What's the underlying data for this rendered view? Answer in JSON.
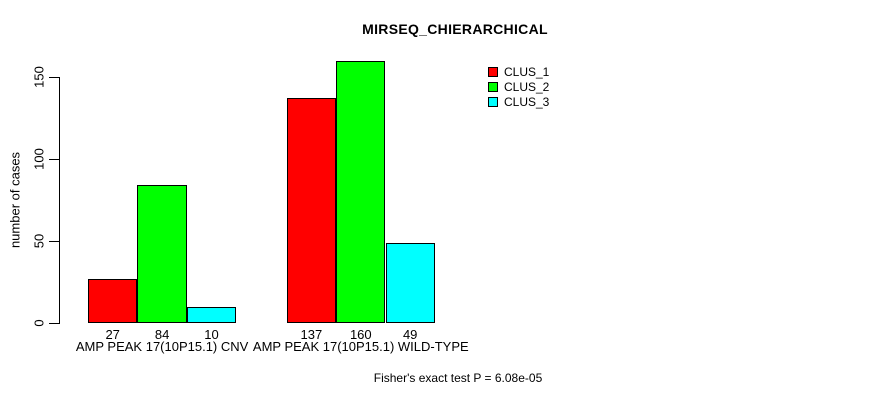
{
  "title": "MIRSEQ_CHIERARCHICAL",
  "footer": "Fisher's exact test P = 6.08e-05",
  "colors": {
    "clus_1": "#ff0000",
    "clus_2": "#00ff00",
    "clus_3": "#00ffff",
    "axis": "#000000",
    "background": "#ffffff"
  },
  "legend": {
    "position": "top-right-of-plot",
    "items": [
      {
        "label": "CLUS_1",
        "color": "#ff0000"
      },
      {
        "label": "CLUS_2",
        "color": "#00ff00"
      },
      {
        "label": "CLUS_3",
        "color": "#00ffff"
      }
    ]
  },
  "chart_data": {
    "type": "bar",
    "title": "MIRSEQ_CHIERARCHICAL",
    "xlabel": "",
    "ylabel": "number of cases",
    "categories": [
      "AMP PEAK 17(10P15.1) CNV",
      "AMP PEAK 17(10P15.1) WILD-TYPE"
    ],
    "series": [
      {
        "name": "CLUS_1",
        "color": "#ff0000",
        "values": [
          27,
          137
        ]
      },
      {
        "name": "CLUS_2",
        "color": "#00ff00",
        "values": [
          84,
          160
        ]
      },
      {
        "name": "CLUS_3",
        "color": "#00ffff",
        "values": [
          10,
          49
        ]
      }
    ],
    "bar_value_labels": [
      [
        27,
        84,
        10
      ],
      [
        137,
        160,
        49
      ]
    ],
    "yticks": [
      0,
      50,
      100,
      150
    ],
    "ylim": [
      0,
      160
    ],
    "grid": false,
    "legend_position": "right-inside",
    "annotation": "Fisher's exact test P = 6.08e-05"
  }
}
